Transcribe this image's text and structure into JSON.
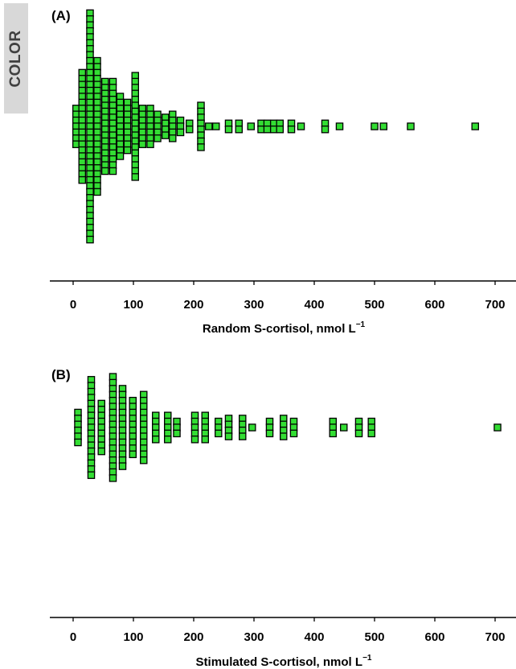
{
  "side_tab": {
    "label": "COLOR"
  },
  "style": {
    "marker_fill": "#33dd33",
    "marker_stroke": "#000000"
  },
  "chart_data": [
    {
      "type": "scatter",
      "subtype": "dot-strip (beeswarm)",
      "panel_label": "(A)",
      "xlabel": "Random S-cortisol, nmol L",
      "xlabel_superscript": "−1",
      "xlim": [
        0,
        700
      ],
      "xticks": [
        0,
        100,
        200,
        300,
        400,
        500,
        600,
        700
      ],
      "grid": false,
      "columns": [
        {
          "x": 5,
          "count": 7
        },
        {
          "x": 15,
          "count": 19
        },
        {
          "x": 28,
          "count": 39
        },
        {
          "x": 40,
          "count": 23
        },
        {
          "x": 53,
          "count": 16
        },
        {
          "x": 66,
          "count": 16
        },
        {
          "x": 78,
          "count": 11
        },
        {
          "x": 90,
          "count": 9
        },
        {
          "x": 103,
          "count": 18
        },
        {
          "x": 115,
          "count": 7
        },
        {
          "x": 128,
          "count": 7
        },
        {
          "x": 140,
          "count": 5
        },
        {
          "x": 153,
          "count": 4
        },
        {
          "x": 165,
          "count": 5
        },
        {
          "x": 178,
          "count": 3
        },
        {
          "x": 193,
          "count": 2
        },
        {
          "x": 212,
          "count": 8
        },
        {
          "x": 225,
          "count": 1
        },
        {
          "x": 237,
          "count": 1
        },
        {
          "x": 258,
          "count": 2
        },
        {
          "x": 275,
          "count": 2
        },
        {
          "x": 295,
          "count": 1
        },
        {
          "x": 312,
          "count": 2
        },
        {
          "x": 322,
          "count": 2
        },
        {
          "x": 333,
          "count": 2
        },
        {
          "x": 343,
          "count": 2
        },
        {
          "x": 362,
          "count": 2
        },
        {
          "x": 378,
          "count": 1
        },
        {
          "x": 418,
          "count": 2
        },
        {
          "x": 442,
          "count": 1
        },
        {
          "x": 500,
          "count": 1
        },
        {
          "x": 515,
          "count": 1
        },
        {
          "x": 560,
          "count": 1
        },
        {
          "x": 667,
          "count": 1
        }
      ]
    },
    {
      "type": "scatter",
      "subtype": "dot-strip (beeswarm)",
      "panel_label": "(B)",
      "xlabel": "Stimulated S-cortisol, nmol L",
      "xlabel_superscript": "−1",
      "xlim": [
        0,
        700
      ],
      "xticks": [
        0,
        100,
        200,
        300,
        400,
        500,
        600,
        700
      ],
      "grid": false,
      "columns": [
        {
          "x": 8,
          "count": 6
        },
        {
          "x": 30,
          "count": 17
        },
        {
          "x": 47,
          "count": 9
        },
        {
          "x": 66,
          "count": 18
        },
        {
          "x": 82,
          "count": 14
        },
        {
          "x": 99,
          "count": 10
        },
        {
          "x": 117,
          "count": 12
        },
        {
          "x": 137,
          "count": 5
        },
        {
          "x": 157,
          "count": 5
        },
        {
          "x": 172,
          "count": 3
        },
        {
          "x": 202,
          "count": 5
        },
        {
          "x": 219,
          "count": 5
        },
        {
          "x": 241,
          "count": 3
        },
        {
          "x": 258,
          "count": 4
        },
        {
          "x": 281,
          "count": 4
        },
        {
          "x": 297,
          "count": 1
        },
        {
          "x": 326,
          "count": 3
        },
        {
          "x": 349,
          "count": 4
        },
        {
          "x": 366,
          "count": 3
        },
        {
          "x": 431,
          "count": 3
        },
        {
          "x": 449,
          "count": 1
        },
        {
          "x": 474,
          "count": 3
        },
        {
          "x": 495,
          "count": 3
        },
        {
          "x": 704,
          "count": 1
        }
      ]
    }
  ]
}
